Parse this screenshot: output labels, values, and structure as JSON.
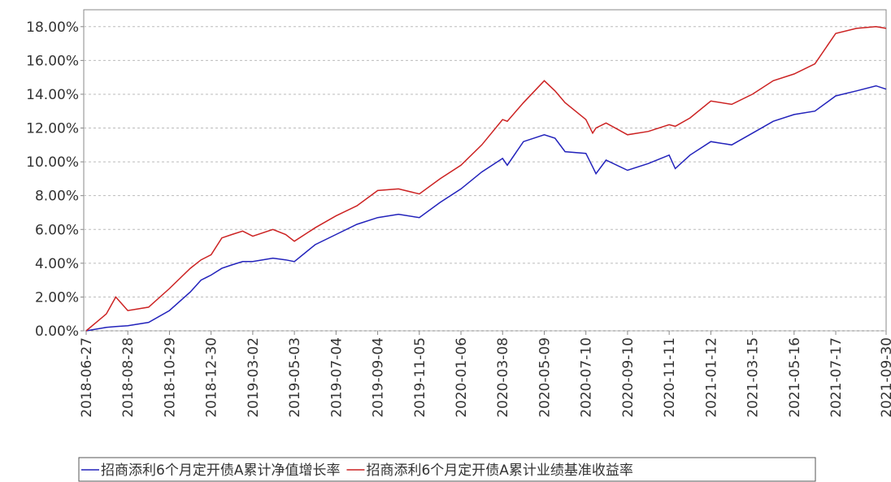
{
  "chart_data": {
    "type": "line",
    "x": [
      "2018-06-27",
      "2018-07-27",
      "2018-08-10",
      "2018-08-28",
      "2018-09-28",
      "2018-10-29",
      "2018-11-29",
      "2018-12-15",
      "2018-12-30",
      "2019-01-15",
      "2019-01-30",
      "2019-02-15",
      "2019-03-02",
      "2019-04-01",
      "2019-04-20",
      "2019-05-03",
      "2019-06-03",
      "2019-07-04",
      "2019-08-04",
      "2019-09-04",
      "2019-10-05",
      "2019-11-05",
      "2019-12-06",
      "2020-01-06",
      "2020-02-06",
      "2020-03-08",
      "2020-03-15",
      "2020-04-08",
      "2020-05-09",
      "2020-05-25",
      "2020-06-09",
      "2020-07-10",
      "2020-07-20",
      "2020-07-25",
      "2020-08-09",
      "2020-09-10",
      "2020-10-11",
      "2020-11-11",
      "2020-11-20",
      "2020-12-12",
      "2021-01-12",
      "2021-02-12",
      "2021-03-15",
      "2021-04-15",
      "2021-05-16",
      "2021-06-16",
      "2021-07-17",
      "2021-08-17",
      "2021-09-15",
      "2021-09-30"
    ],
    "series": [
      {
        "name": "招商添利6个月定开债A累计净值增长率",
        "color": "#2222bb",
        "values": [
          0,
          0.2,
          0.25,
          0.3,
          0.5,
          1.2,
          2.3,
          3.0,
          3.3,
          3.7,
          3.9,
          4.1,
          4.1,
          4.3,
          4.2,
          4.1,
          5.1,
          5.7,
          6.3,
          6.7,
          6.9,
          6.7,
          7.6,
          8.4,
          9.4,
          10.2,
          9.8,
          11.2,
          11.6,
          11.4,
          10.6,
          10.5,
          9.7,
          9.3,
          10.1,
          9.5,
          9.9,
          10.4,
          9.6,
          10.4,
          11.2,
          11.0,
          11.7,
          12.4,
          12.8,
          13.0,
          13.9,
          14.2,
          14.5,
          14.3
        ]
      },
      {
        "name": "招商添利6个月定开债A累计业绩基准收益率",
        "color": "#cc2222",
        "values": [
          0,
          1.0,
          2.0,
          1.2,
          1.4,
          2.5,
          3.7,
          4.2,
          4.5,
          5.5,
          5.7,
          5.9,
          5.6,
          6.0,
          5.7,
          5.3,
          6.1,
          6.8,
          7.4,
          8.3,
          8.4,
          8.1,
          9.0,
          9.8,
          11.0,
          12.5,
          12.4,
          13.5,
          14.8,
          14.2,
          13.5,
          12.5,
          11.7,
          12.0,
          12.3,
          11.6,
          11.8,
          12.2,
          12.1,
          12.6,
          13.6,
          13.4,
          14.0,
          14.8,
          15.2,
          15.8,
          17.6,
          17.9,
          18.0,
          17.9
        ]
      }
    ],
    "xlim": [
      "2018-06-27",
      "2021-09-30"
    ],
    "xticks": [
      "2018-06-27",
      "2018-08-28",
      "2018-10-29",
      "2018-12-30",
      "2019-03-02",
      "2019-05-03",
      "2019-07-04",
      "2019-09-04",
      "2019-11-05",
      "2020-01-06",
      "2020-03-08",
      "2020-05-09",
      "2020-07-10",
      "2020-09-10",
      "2020-11-11",
      "2021-01-12",
      "2021-03-15",
      "2021-05-16",
      "2021-07-17",
      "2021-09-30"
    ],
    "ylim": [
      0,
      19
    ],
    "yticks": [
      {
        "value": 0,
        "label": "0.00%"
      },
      {
        "value": 2,
        "label": "2.00%"
      },
      {
        "value": 4,
        "label": "4.00%"
      },
      {
        "value": 6,
        "label": "6.00%"
      },
      {
        "value": 8,
        "label": "8.00%"
      },
      {
        "value": 10,
        "label": "10.00%"
      },
      {
        "value": 12,
        "label": "12.00%"
      },
      {
        "value": 14,
        "label": "14.00%"
      },
      {
        "value": 16,
        "label": "16.00%"
      },
      {
        "value": 18,
        "label": "18.00%"
      }
    ],
    "grid": true
  }
}
